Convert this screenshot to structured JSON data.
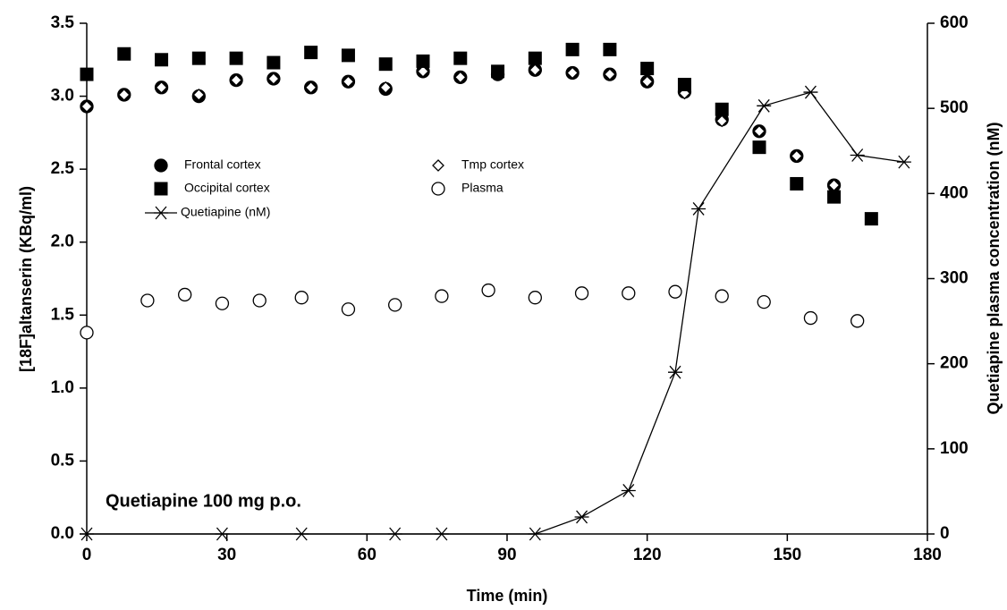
{
  "chart_data": {
    "type": "scatter",
    "x_label": "Time (min)",
    "y_label": "[18F]altanserin (KBq/ml)",
    "y2_label": "Quetiapine plasma concentration (nM)",
    "annotation": "Quetiapine 100 mg p.o.",
    "xlim": [
      0,
      180
    ],
    "xticks": [
      0,
      30,
      60,
      90,
      120,
      150,
      180
    ],
    "ylim": [
      0,
      3.5
    ],
    "yticks": [
      {
        "value": 0,
        "label": "0.0"
      },
      {
        "value": 0.5,
        "label": "0.5"
      },
      {
        "value": 1,
        "label": "1.0"
      },
      {
        "value": 1.5,
        "label": "1.5"
      },
      {
        "value": 2,
        "label": "2.0"
      },
      {
        "value": 2.5,
        "label": "2.5"
      },
      {
        "value": 3,
        "label": "3.0"
      },
      {
        "value": 3.5,
        "label": "3.5"
      }
    ],
    "y2lim": [
      0,
      600
    ],
    "y2ticks": [
      0,
      100,
      200,
      300,
      400,
      500,
      600
    ],
    "series": [
      {
        "name": "Frontal cortex",
        "marker": "circle",
        "filled": true,
        "color": "#000000",
        "x": [
          0,
          8,
          16,
          24,
          32,
          40,
          48,
          56,
          64,
          72,
          80,
          88,
          96,
          104,
          112,
          120,
          128,
          136,
          144,
          152,
          160
        ],
        "values": [
          2.93,
          3.01,
          3.06,
          3.0,
          3.11,
          3.12,
          3.06,
          3.1,
          3.05,
          3.17,
          3.13,
          3.15,
          3.18,
          3.16,
          3.15,
          3.1,
          3.03,
          2.84,
          2.76,
          2.59,
          2.39
        ]
      },
      {
        "name": "Tmp cortex",
        "marker": "diamond",
        "filled": false,
        "color": "#000000",
        "x": [
          0,
          8,
          16,
          24,
          32,
          40,
          48,
          56,
          64,
          72,
          80,
          88,
          96,
          104,
          112,
          120,
          128,
          136,
          144,
          152,
          160
        ],
        "values": [
          2.93,
          3.01,
          3.06,
          3.01,
          3.11,
          3.12,
          3.06,
          3.1,
          3.06,
          3.17,
          3.13,
          3.16,
          3.18,
          3.16,
          3.15,
          3.1,
          3.02,
          2.83,
          2.76,
          2.59,
          2.39
        ]
      },
      {
        "name": "Occipital cortex",
        "marker": "square",
        "filled": true,
        "color": "#000000",
        "x": [
          0,
          8,
          16,
          24,
          32,
          40,
          48,
          56,
          64,
          72,
          80,
          88,
          96,
          104,
          112,
          120,
          128,
          136,
          144,
          152,
          160,
          168
        ],
        "values": [
          3.15,
          3.29,
          3.25,
          3.26,
          3.26,
          3.23,
          3.3,
          3.28,
          3.22,
          3.24,
          3.26,
          3.17,
          3.26,
          3.32,
          3.32,
          3.19,
          3.08,
          2.91,
          2.65,
          2.4,
          2.31,
          2.16
        ]
      },
      {
        "name": "Plasma",
        "marker": "circle",
        "filled": false,
        "color": "#000000",
        "x": [
          0,
          13,
          21,
          29,
          37,
          46,
          56,
          66,
          76,
          86,
          96,
          106,
          116,
          126,
          136,
          145,
          155,
          165
        ],
        "values": [
          1.38,
          1.6,
          1.64,
          1.58,
          1.6,
          1.62,
          1.54,
          1.57,
          1.63,
          1.67,
          1.62,
          1.65,
          1.65,
          1.66,
          1.63,
          1.59,
          1.48,
          1.46
        ]
      },
      {
        "name": "Quetiapine (nM)",
        "marker": "star",
        "filled": false,
        "line": true,
        "axis": "y2",
        "color": "#000000",
        "x": [
          0,
          29,
          46,
          66,
          76,
          96,
          106,
          116,
          126,
          131,
          145,
          155,
          165,
          175
        ],
        "values": [
          0,
          0,
          0,
          0,
          0,
          0,
          20,
          51,
          190,
          382,
          503,
          519,
          445,
          437
        ]
      }
    ]
  }
}
